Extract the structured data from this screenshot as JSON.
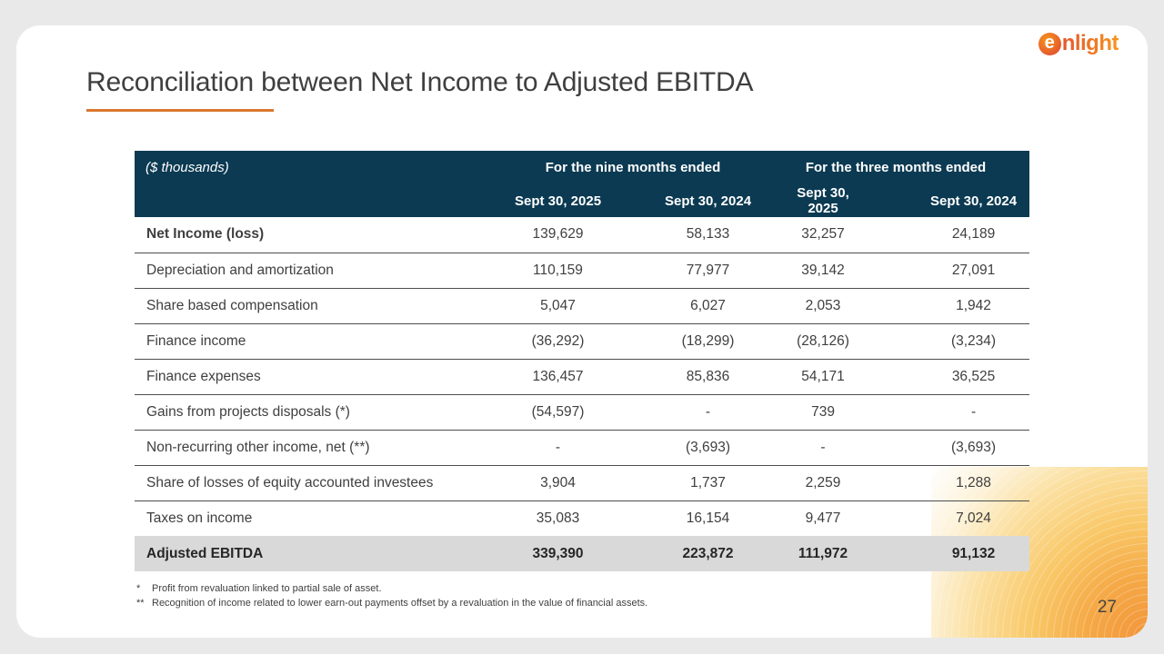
{
  "brand": {
    "logo_e": "e",
    "logo_rest": "nlight"
  },
  "slide": {
    "title": "Reconciliation between Net Income to Adjusted EBITDA",
    "page_number": "27"
  },
  "table": {
    "unit_label": "($ thousands)",
    "col_groups": [
      "For the nine months ended",
      "For the three months ended"
    ],
    "col_headers": [
      "Sept 30, 2025",
      "Sept 30, 2024",
      "Sept 30, 2025",
      "Sept 30, 2024"
    ],
    "rows": [
      {
        "label": "Net Income (loss)",
        "bold": true,
        "values": [
          "139,629",
          "58,133",
          "32,257",
          "24,189"
        ]
      },
      {
        "label": "Depreciation and amortization",
        "values": [
          "110,159",
          "77,977",
          "39,142",
          "27,091"
        ]
      },
      {
        "label": "Share based compensation",
        "values": [
          "5,047",
          "6,027",
          "2,053",
          "1,942"
        ]
      },
      {
        "label": "Finance income",
        "values": [
          "(36,292)",
          "(18,299)",
          "(28,126)",
          "(3,234)"
        ]
      },
      {
        "label": "Finance expenses",
        "values": [
          "136,457",
          "85,836",
          "54,171",
          "36,525"
        ]
      },
      {
        "label": "Gains from projects disposals (*)",
        "values": [
          "(54,597)",
          "-",
          "739",
          "-"
        ]
      },
      {
        "label": "Non-recurring other income, net (**)",
        "values": [
          "-",
          "(3,693)",
          "-",
          "(3,693)"
        ]
      },
      {
        "label": "Share of losses of equity accounted investees",
        "values": [
          "3,904",
          "1,737",
          "2,259",
          "1,288"
        ]
      },
      {
        "label": "Taxes on income",
        "values": [
          "35,083",
          "16,154",
          "9,477",
          "7,024"
        ]
      },
      {
        "label": "Adjusted EBITDA",
        "total": true,
        "values": [
          "339,390",
          "223,872",
          "111,972",
          "91,132"
        ]
      }
    ],
    "footnotes": [
      {
        "marker": "*",
        "text": "Profit from revaluation linked to partial sale of asset."
      },
      {
        "marker": "**",
        "text": "Recognition of income related to lower earn-out payments offset by a revaluation in the value of financial assets."
      }
    ]
  },
  "colors": {
    "accent_orange": "#D9772E",
    "header_navy": "#0B3A52",
    "total_row_gray": "#D9D9D9",
    "logo_gradient_start": "#E4572E",
    "logo_gradient_end": "#F7941D"
  }
}
